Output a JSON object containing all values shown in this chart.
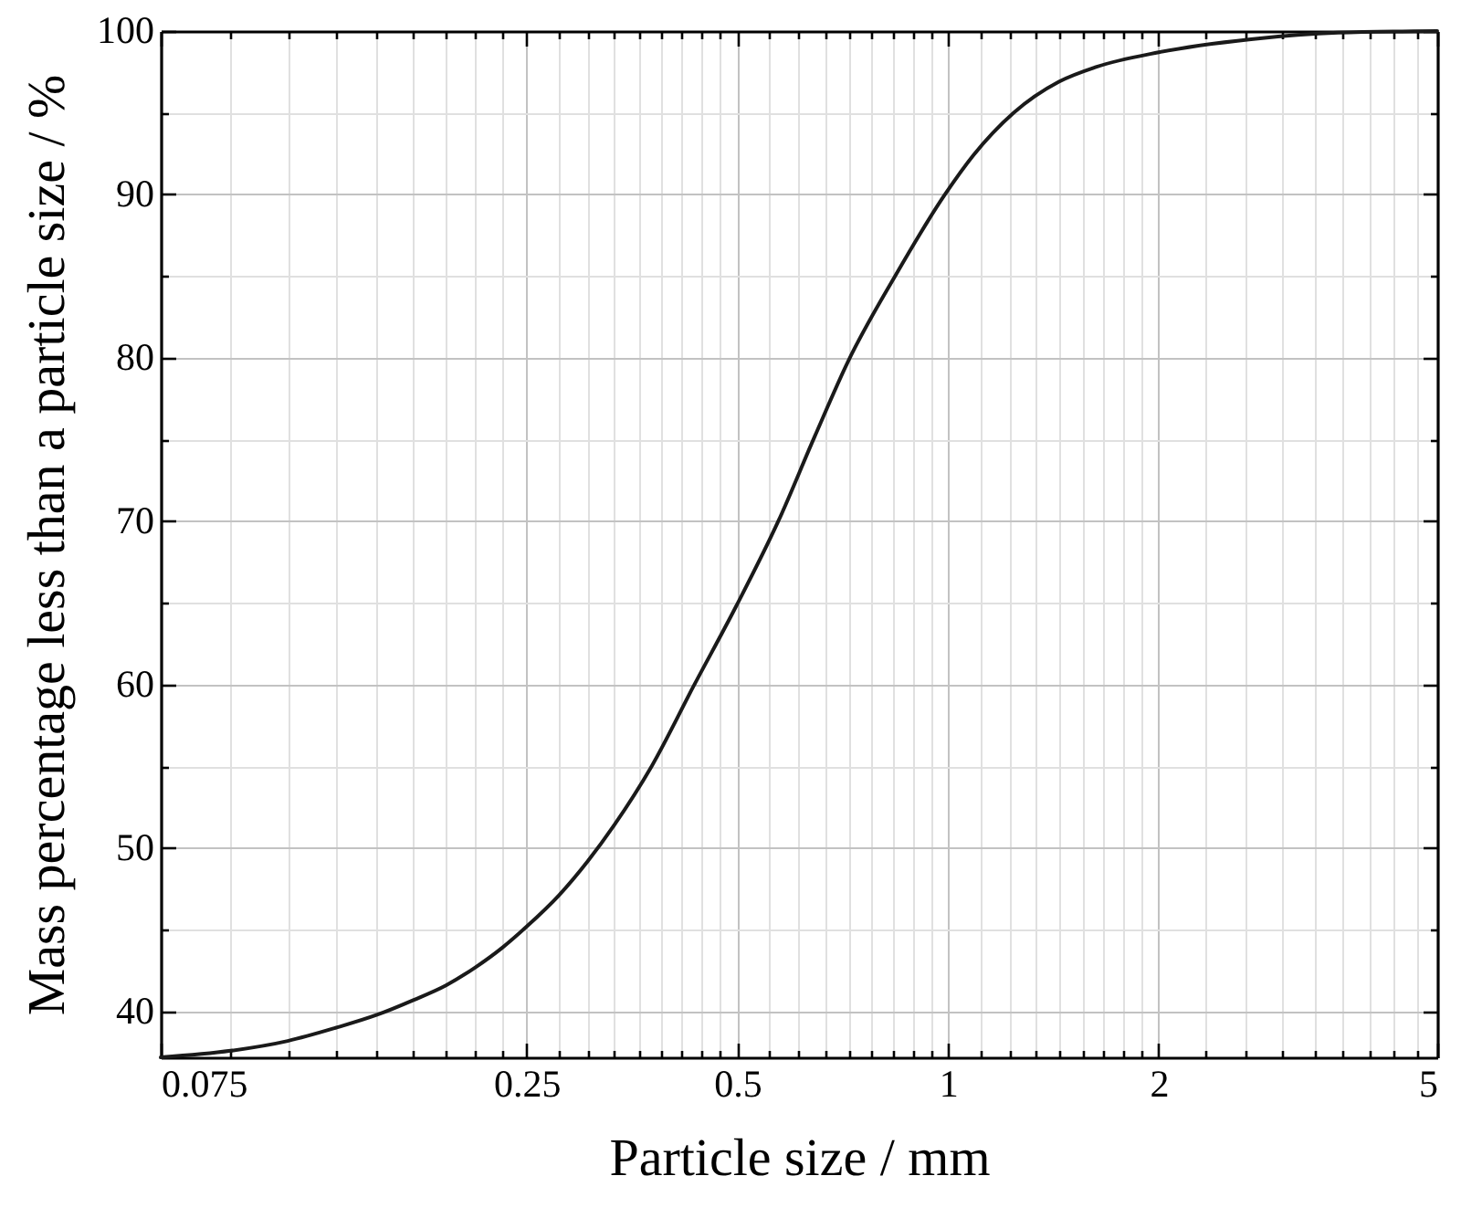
{
  "chart_data": {
    "type": "line",
    "xlabel": "Particle size / mm",
    "ylabel": "Mass percentage less than a particle size / %",
    "x": [
      0.075,
      0.0944,
      0.1139,
      0.1333,
      0.1528,
      0.1722,
      0.1917,
      0.2111,
      0.2306,
      0.25,
      0.2778,
      0.3056,
      0.3333,
      0.377,
      0.434,
      0.498,
      0.572,
      0.645,
      0.72,
      0.84,
      0.99,
      1.087,
      1.241,
      1.44,
      1.627,
      2,
      2.71,
      3.61,
      5
    ],
    "series": [
      {
        "color": "#1a1a1a",
        "values": [
          37.2,
          37.6,
          38.2,
          39.0,
          39.8,
          40.7,
          41.6,
          42.7,
          43.9,
          45.2,
          47.1,
          49.2,
          51.4,
          55,
          60,
          64.8,
          70,
          75.2,
          79.8,
          85,
          90,
          92.4,
          95,
          96.9,
          97.8,
          98.7,
          99.5,
          99.9,
          100
        ]
      }
    ],
    "xlim": [
      0.075,
      5
    ],
    "ylim": [
      37.2,
      100
    ],
    "xticks": [
      0.075,
      {
        "value": 0.0944,
        "label": null
      },
      {
        "value": 0.1139,
        "label": null
      },
      {
        "value": 0.1333,
        "label": null
      },
      {
        "value": 0.1528,
        "label": null
      },
      {
        "value": 0.1722,
        "label": null
      },
      {
        "value": 0.1917,
        "label": null
      },
      {
        "value": 0.2111,
        "label": null
      },
      {
        "value": 0.2306,
        "label": null
      },
      0.25,
      {
        "value": 0.2778,
        "label": null
      },
      {
        "value": 0.3056,
        "label": null
      },
      {
        "value": 0.3333,
        "label": null
      },
      {
        "value": 0.3611,
        "label": null
      },
      {
        "value": 0.3889,
        "label": null
      },
      {
        "value": 0.4167,
        "label": null
      },
      {
        "value": 0.4444,
        "label": null
      },
      {
        "value": 0.4722,
        "label": null
      },
      0.5,
      {
        "value": 0.5556,
        "label": null
      },
      {
        "value": 0.6111,
        "label": null
      },
      {
        "value": 0.6667,
        "label": null
      },
      {
        "value": 0.7222,
        "label": null
      },
      {
        "value": 0.7778,
        "label": null
      },
      {
        "value": 0.8333,
        "label": null
      },
      {
        "value": 0.8889,
        "label": null
      },
      {
        "value": 0.9444,
        "label": null
      },
      1,
      {
        "value": 1.1111,
        "label": null
      },
      {
        "value": 1.2222,
        "label": null
      },
      {
        "value": 1.3333,
        "label": null
      },
      {
        "value": 1.4444,
        "label": null
      },
      {
        "value": 1.5556,
        "label": null
      },
      {
        "value": 1.6667,
        "label": null
      },
      {
        "value": 1.7778,
        "label": null
      },
      {
        "value": 1.8889,
        "label": null
      },
      2,
      {
        "value": 2.3333,
        "label": null
      },
      {
        "value": 2.6667,
        "label": null
      },
      {
        "value": 3,
        "label": null
      },
      {
        "value": 3.3333,
        "label": null
      },
      {
        "value": 3.6667,
        "label": null
      },
      {
        "value": 4,
        "label": null
      },
      {
        "value": 4.3333,
        "label": null
      },
      {
        "value": 4.6667,
        "label": null
      },
      5
    ],
    "yticks": [
      40,
      {
        "value": 45,
        "label": null
      },
      50,
      {
        "value": 55,
        "label": null
      },
      60,
      {
        "value": 65,
        "label": null
      },
      70,
      {
        "value": 75,
        "label": null
      },
      80,
      {
        "value": 85,
        "label": null
      },
      90,
      {
        "value": 95,
        "label": null
      },
      100
    ],
    "log": "x",
    "grid": true
  }
}
